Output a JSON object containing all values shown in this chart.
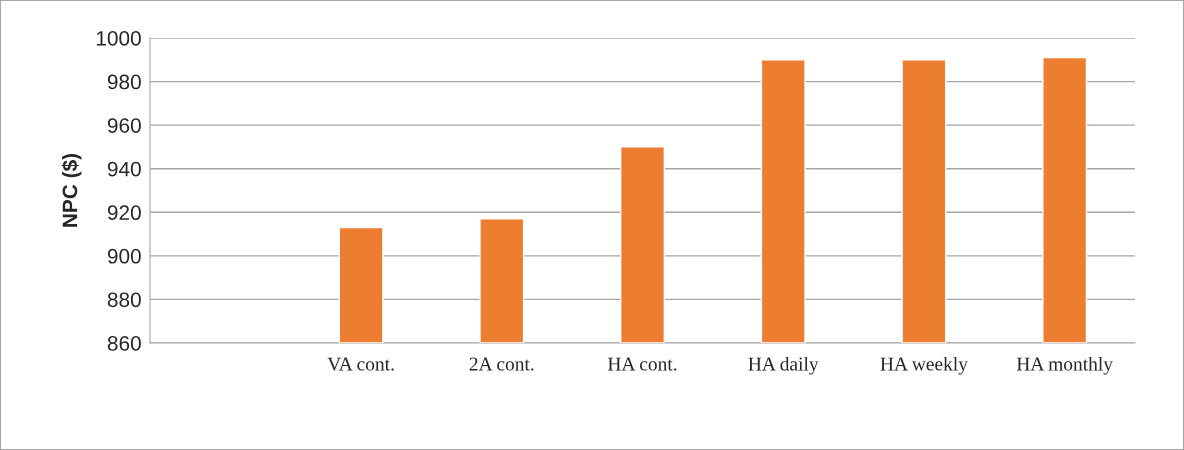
{
  "chart_data": {
    "type": "bar",
    "ylabel": "NPC ($)",
    "categories": [
      null,
      "VA cont.",
      "2A cont.",
      "HA cont.",
      "HA daily",
      "HA weekly",
      "HA monthly"
    ],
    "values": [
      null,
      913,
      917,
      950,
      990,
      990,
      991
    ],
    "color": "#ed7d31",
    "ylim": [
      860,
      1000
    ],
    "yticks": [
      860,
      880,
      900,
      920,
      940,
      960,
      980,
      1000
    ],
    "grid": "y"
  }
}
